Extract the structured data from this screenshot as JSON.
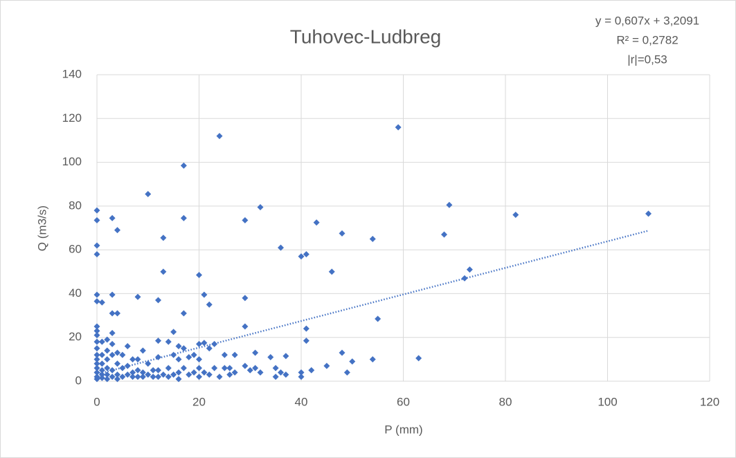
{
  "chart_data": {
    "type": "scatter",
    "title": "Tuhovec-Ludbreg",
    "annotations": [
      "y = 0,607x + 3,2091",
      "R² = 0,2782",
      "|r|=0,53"
    ],
    "trendline": {
      "slope": 0.607,
      "intercept": 3.2091
    },
    "xlabel": "P (mm)",
    "ylabel": "Q (m3/s)",
    "color": "#4472c4",
    "grid": true,
    "xlim": [
      0,
      120
    ],
    "xticks": [
      0,
      20,
      40,
      60,
      80,
      100,
      120
    ],
    "ylim": [
      0,
      140
    ],
    "yticks": [
      0,
      20,
      40,
      60,
      80,
      100,
      120,
      140
    ],
    "x": [
      0,
      0,
      0,
      0,
      0,
      0,
      0,
      0,
      0,
      0,
      0,
      0,
      0,
      0,
      0,
      0,
      0,
      0,
      1,
      1,
      1,
      1,
      1,
      1,
      1,
      2,
      2,
      2,
      2,
      2,
      2,
      3,
      3,
      3,
      3,
      3,
      3,
      3,
      3,
      4,
      4,
      4,
      4,
      4,
      4,
      5,
      5,
      5,
      6,
      6,
      6,
      7,
      7,
      7,
      8,
      8,
      8,
      8,
      9,
      9,
      9,
      10,
      10,
      10,
      11,
      11,
      12,
      12,
      12,
      12,
      12,
      13,
      13,
      13,
      14,
      14,
      14,
      15,
      15,
      15,
      16,
      16,
      16,
      16,
      17,
      17,
      17,
      17,
      17,
      18,
      18,
      19,
      19,
      20,
      20,
      20,
      20,
      20,
      21,
      21,
      21,
      22,
      22,
      22,
      23,
      23,
      24,
      24,
      25,
      25,
      26,
      26,
      27,
      27,
      29,
      29,
      29,
      29,
      30,
      31,
      31,
      32,
      32,
      34,
      35,
      35,
      36,
      36,
      37,
      37,
      40,
      40,
      40,
      41,
      41,
      41,
      42,
      43,
      45,
      46,
      48,
      48,
      49,
      50,
      54,
      54,
      55,
      59,
      63,
      68,
      69,
      72,
      73,
      82,
      108
    ],
    "values": [
      78,
      73.5,
      62,
      58,
      39.5,
      36.5,
      25,
      23,
      21,
      18,
      15,
      12,
      10,
      8,
      6,
      4,
      2,
      1,
      36,
      18,
      12,
      8,
      5,
      3,
      1.5,
      19,
      14,
      10,
      6,
      3,
      1,
      74.5,
      39.5,
      31,
      22,
      17,
      12,
      5,
      2,
      69,
      31,
      13,
      8,
      3,
      1,
      12,
      6,
      2,
      16,
      7,
      3,
      10,
      4,
      2,
      38.5,
      10,
      5,
      2,
      14,
      4,
      2,
      85.5,
      8,
      3,
      5,
      2,
      37,
      18.5,
      11,
      5,
      2,
      65.5,
      50,
      3,
      18,
      6,
      2,
      22.5,
      12,
      3,
      16,
      10,
      4,
      1,
      98.5,
      74.5,
      31,
      15,
      6,
      11,
      3,
      12,
      4,
      48.5,
      17,
      10,
      6,
      2,
      39.5,
      17.5,
      4,
      35,
      15,
      3,
      17,
      6,
      112,
      2,
      12,
      6,
      6,
      3,
      12,
      4,
      73.5,
      38,
      25,
      7,
      5,
      13,
      6,
      79.5,
      4,
      11,
      6,
      2,
      61,
      4,
      11.5,
      3,
      57,
      4,
      2,
      58,
      24,
      18.5,
      5,
      72.5,
      7,
      50,
      67.5,
      13,
      4,
      9,
      65,
      10,
      28.5,
      116,
      10.5,
      67,
      80.5,
      47,
      51,
      76,
      76.5
    ]
  }
}
